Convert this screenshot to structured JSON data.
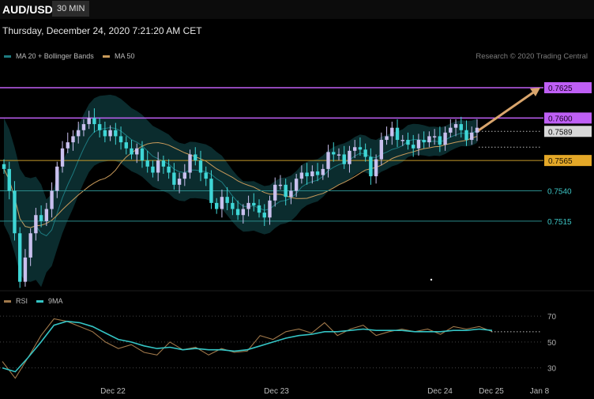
{
  "header": {
    "symbol": "AUD/USD",
    "timeframe": "30 MIN"
  },
  "datetime": "Thursday, December 24, 2020 7:21:20 AM CET",
  "credit": "Research © 2020 Trading Central",
  "legend": {
    "bb": {
      "label": "MA 20 + Bollinger Bands",
      "color": "#1d7b80"
    },
    "ma50": {
      "label": "MA 50",
      "color": "#c89a5a"
    }
  },
  "rsi_legend": {
    "rsi": {
      "label": "RSI",
      "color": "#a0784a"
    },
    "ma9": {
      "label": "9MA",
      "color": "#34c4c4"
    }
  },
  "colors": {
    "candle_up": "#c9c0ee",
    "candle_down": "#3fd6d6",
    "resistance": "#bf5ff5",
    "support": "#2a8a8a",
    "pivot": "#e4a828",
    "arrow": "#d9a56c"
  },
  "chart_data": [
    {
      "type": "candlestick",
      "title": "AUD/USD",
      "ylim": [
        0.7455,
        0.764
      ],
      "x_ticks": [
        "Dec 22",
        "Dec 23",
        "Dec 24",
        "Dec 25",
        "Jan 8"
      ],
      "levels": [
        {
          "value": 0.7625,
          "label": "0.7625",
          "kind": "resistance"
        },
        {
          "value": 0.76,
          "label": "0.7600",
          "kind": "resistance"
        },
        {
          "value": 0.7589,
          "label": "0.7589",
          "kind": "last"
        },
        {
          "value": 0.7565,
          "label": "0.7565",
          "kind": "pivot"
        },
        {
          "value": 0.754,
          "label": "0.7540",
          "kind": "support"
        },
        {
          "value": 0.7515,
          "label": "0.7515",
          "kind": "support"
        }
      ],
      "closes": [
        0.7558,
        0.754,
        0.7505,
        0.7465,
        0.7485,
        0.7505,
        0.752,
        0.7515,
        0.7525,
        0.754,
        0.756,
        0.7575,
        0.758,
        0.7585,
        0.759,
        0.7595,
        0.76,
        0.7595,
        0.759,
        0.7585,
        0.759,
        0.7585,
        0.758,
        0.7575,
        0.757,
        0.7575,
        0.7565,
        0.756,
        0.7555,
        0.7565,
        0.756,
        0.7555,
        0.7545,
        0.755,
        0.7555,
        0.757,
        0.7565,
        0.7555,
        0.755,
        0.753,
        0.7525,
        0.7535,
        0.753,
        0.7525,
        0.752,
        0.7525,
        0.753,
        0.7528,
        0.7522,
        0.7518,
        0.7532,
        0.7545,
        0.7545,
        0.7535,
        0.754,
        0.755,
        0.7555,
        0.7552,
        0.7556,
        0.7553,
        0.7558,
        0.7572,
        0.757,
        0.757,
        0.7562,
        0.7573,
        0.7576,
        0.7574,
        0.7568,
        0.7552,
        0.7566,
        0.7582,
        0.7585,
        0.7592,
        0.7582,
        0.7582,
        0.7578,
        0.7575,
        0.7582,
        0.758,
        0.7585,
        0.7585,
        0.7578,
        0.7588,
        0.7592,
        0.7595,
        0.759,
        0.7582,
        0.7588,
        0.7592
      ],
      "bollinger_ma20": {
        "upper_start": 0.7595,
        "upper_end": 0.7592,
        "lower_end": 0.7572
      },
      "ma50_trend": "rising",
      "projection": {
        "from": 0.7589,
        "to": 0.7625
      }
    },
    {
      "type": "line",
      "title": "RSI",
      "ylim": [
        20,
        75
      ],
      "y_ticks": [
        70,
        50,
        30
      ],
      "series": [
        {
          "name": "RSI",
          "values": [
            35,
            22,
            38,
            55,
            68,
            66,
            62,
            58,
            50,
            45,
            48,
            42,
            40,
            50,
            44,
            46,
            40,
            45,
            42,
            43,
            55,
            52,
            58,
            60,
            57,
            65,
            55,
            60,
            63,
            55,
            58,
            60,
            58,
            60,
            56,
            62,
            60,
            62,
            58
          ]
        },
        {
          "name": "9MA",
          "values": [
            30,
            27,
            38,
            50,
            63,
            66,
            65,
            62,
            57,
            52,
            50,
            47,
            45,
            46,
            44,
            45,
            44,
            44,
            43,
            44,
            47,
            50,
            53,
            55,
            56,
            58,
            58,
            59,
            60,
            59,
            59,
            59,
            58,
            58,
            58,
            59,
            59,
            60,
            59
          ]
        }
      ]
    }
  ]
}
